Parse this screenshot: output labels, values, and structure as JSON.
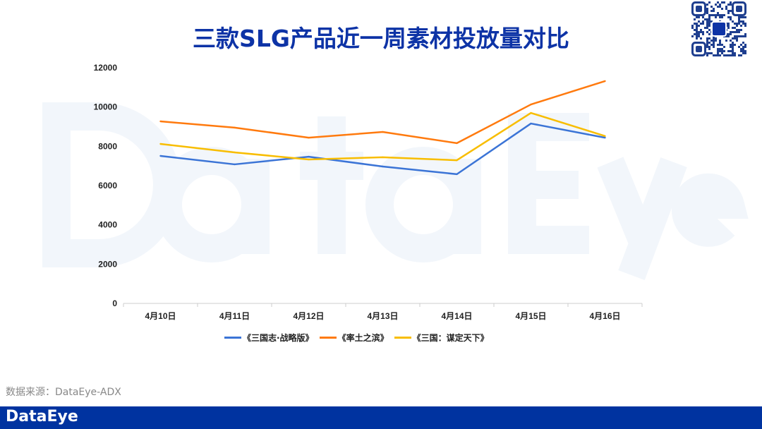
{
  "title": "三款SLG产品近一周素材投放量对比",
  "watermark": "DataEye",
  "source": "数据来源：DataEye-ADX",
  "footer_logo": "DataEye",
  "qr_logo": "DataEye",
  "chart_data": {
    "type": "line",
    "title": "三款SLG产品近一周素材投放量对比",
    "categories": [
      "4月10日",
      "4月11日",
      "4月12日",
      "4月13日",
      "4月14日",
      "4月15日",
      "4月16日"
    ],
    "ylim": [
      0,
      12000
    ],
    "yticks": [
      0,
      2000,
      4000,
      6000,
      8000,
      10000,
      12000
    ],
    "grid": false,
    "legend": "bottom",
    "series": [
      {
        "name": "《三国志·战略版》",
        "color": "#3b74d6",
        "values": [
          7510,
          7080,
          7470,
          6970,
          6580,
          9160,
          8440
        ]
      },
      {
        "name": "《率土之滨》",
        "color": "#ff7a0e",
        "values": [
          9270,
          8950,
          8440,
          8730,
          8160,
          10130,
          11320
        ]
      },
      {
        "name": "《三国：谋定天下》",
        "color": "#f8bd00",
        "values": [
          8120,
          7690,
          7330,
          7440,
          7290,
          9700,
          8520
        ]
      }
    ]
  }
}
